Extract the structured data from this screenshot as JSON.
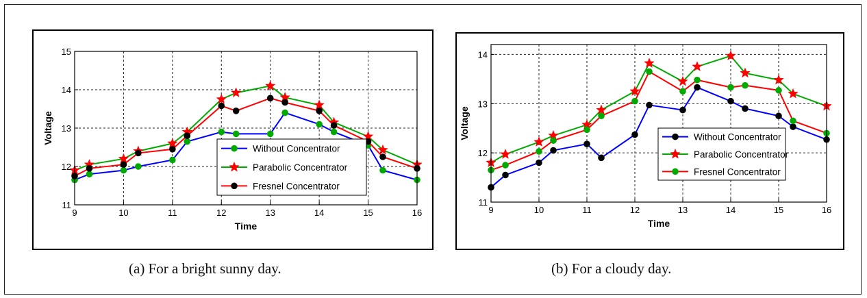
{
  "figure": {
    "captions": [
      "(a)  For a bright sunny day.",
      "(b) For a cloudy day."
    ]
  },
  "chart_data": [
    {
      "type": "line",
      "xlabel": "Time",
      "ylabel": "Voltage",
      "xlim": [
        9,
        16
      ],
      "ylim": [
        11,
        15
      ],
      "xticks": [
        9,
        10,
        11,
        12,
        13,
        14,
        15,
        16
      ],
      "yticks": [
        11,
        12,
        13,
        14,
        15
      ],
      "grid": true,
      "legend_position": "lower-right",
      "series": [
        {
          "name": "Without Concentrator",
          "line_color": "#0000ff",
          "marker": "circle",
          "marker_color": "#00aa00",
          "x": [
            9,
            9.3,
            10,
            10.3,
            11,
            11.3,
            12,
            12.3,
            13,
            13.3,
            14,
            14.3,
            15,
            15.3,
            16
          ],
          "y": [
            11.65,
            11.8,
            11.9,
            12.0,
            12.17,
            12.65,
            12.9,
            12.85,
            12.85,
            13.4,
            13.1,
            12.9,
            12.55,
            11.9,
            11.65
          ]
        },
        {
          "name": "Parabolic Concentrator",
          "line_color": "#00aa00",
          "marker": "star",
          "marker_color": "#ff0000",
          "x": [
            9,
            9.3,
            10,
            10.3,
            11,
            11.3,
            12,
            12.3,
            13,
            13.3,
            14,
            14.3,
            15,
            15.3,
            16
          ],
          "y": [
            11.9,
            12.05,
            12.2,
            12.4,
            12.6,
            12.9,
            13.75,
            13.92,
            14.1,
            13.8,
            13.6,
            13.15,
            12.78,
            12.43,
            12.05
          ]
        },
        {
          "name": "Fresnel Concentrator",
          "line_color": "#ff0000",
          "marker": "circle",
          "marker_color": "#000000",
          "x": [
            9,
            9.3,
            10,
            10.3,
            11,
            11.3,
            12,
            12.3,
            13,
            13.3,
            14,
            14.3,
            15,
            15.3,
            16
          ],
          "y": [
            11.75,
            11.95,
            12.05,
            12.35,
            12.45,
            12.8,
            13.58,
            13.45,
            13.78,
            13.67,
            13.45,
            13.07,
            12.65,
            12.25,
            11.95
          ]
        }
      ]
    },
    {
      "type": "line",
      "xlabel": "Time",
      "ylabel": "Voltage",
      "xlim": [
        9,
        16
      ],
      "ylim": [
        11,
        14.2
      ],
      "xticks": [
        9,
        10,
        11,
        12,
        13,
        14,
        15,
        16
      ],
      "yticks": [
        11,
        12,
        13,
        14
      ],
      "grid": true,
      "legend_position": "center",
      "series": [
        {
          "name": "Without Concentrator",
          "line_color": "#0000ff",
          "marker": "circle",
          "marker_color": "#000000",
          "x": [
            9,
            9.3,
            10,
            10.3,
            11,
            11.3,
            12,
            12.3,
            13,
            13.3,
            14,
            14.3,
            15,
            15.3,
            16
          ],
          "y": [
            11.3,
            11.55,
            11.8,
            12.05,
            12.18,
            11.9,
            12.37,
            12.97,
            12.87,
            13.33,
            13.05,
            12.9,
            12.75,
            12.53,
            12.27
          ]
        },
        {
          "name": "Parabolic Concentrator",
          "line_color": "#00aa00",
          "marker": "star",
          "marker_color": "#ff0000",
          "x": [
            9,
            9.3,
            10,
            10.3,
            11,
            11.3,
            12,
            12.3,
            13,
            13.3,
            14,
            14.3,
            15,
            15.3,
            16
          ],
          "y": [
            11.8,
            11.97,
            12.22,
            12.35,
            12.57,
            12.87,
            13.25,
            13.82,
            13.45,
            13.75,
            13.97,
            13.62,
            13.48,
            13.2,
            12.95
          ]
        },
        {
          "name": "Fresnel Concentrator",
          "line_color": "#ff0000",
          "marker": "circle",
          "marker_color": "#00aa00",
          "x": [
            9,
            9.3,
            10,
            10.3,
            11,
            11.3,
            12,
            12.3,
            13,
            13.3,
            14,
            14.3,
            15,
            15.3,
            16
          ],
          "y": [
            11.65,
            11.75,
            12.03,
            12.25,
            12.47,
            12.75,
            13.05,
            13.65,
            13.25,
            13.48,
            13.33,
            13.37,
            13.27,
            12.65,
            12.4
          ]
        }
      ]
    }
  ]
}
